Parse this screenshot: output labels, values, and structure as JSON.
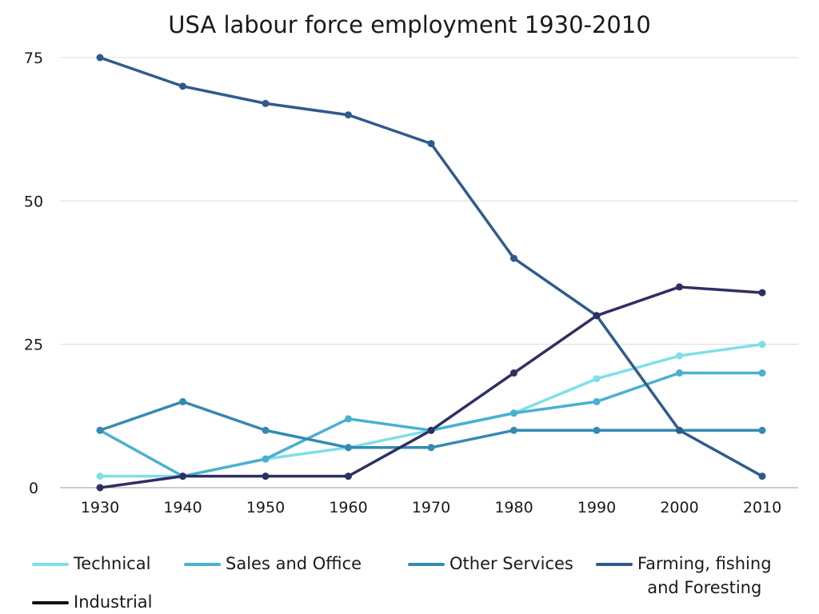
{
  "chart_data": {
    "type": "line",
    "title": "USA labour force employment 1930-2010",
    "xlabel": "",
    "ylabel": "",
    "x": [
      "1930",
      "1940",
      "1950",
      "1960",
      "1970",
      "1980",
      "1990",
      "2000",
      "2010"
    ],
    "ylim": [
      0,
      75
    ],
    "yticks": [
      "0",
      "25",
      "50",
      "75"
    ],
    "grid": true,
    "legend_position": "bottom",
    "series": [
      {
        "name": "Technical",
        "color": "#7ee0e6",
        "values": [
          2,
          2,
          5,
          7,
          10,
          13,
          19,
          23,
          25
        ]
      },
      {
        "name": "Sales and Office",
        "color": "#4ab0d2",
        "values": [
          10,
          2,
          5,
          12,
          10,
          13,
          15,
          20,
          20
        ]
      },
      {
        "name": "Other Services",
        "color": "#3589b3",
        "values": [
          10,
          15,
          10,
          7,
          7,
          10,
          10,
          10,
          10
        ]
      },
      {
        "name": "Farming, fishing\nand Foresting",
        "color": "#2f5b8c",
        "values": [
          75,
          70,
          67,
          65,
          60,
          40,
          30,
          10,
          2
        ]
      },
      {
        "name": "Industrial",
        "color": "#2e2f63",
        "legend_color": "#111111",
        "values": [
          0,
          2,
          2,
          2,
          10,
          20,
          30,
          35,
          34
        ]
      }
    ]
  }
}
